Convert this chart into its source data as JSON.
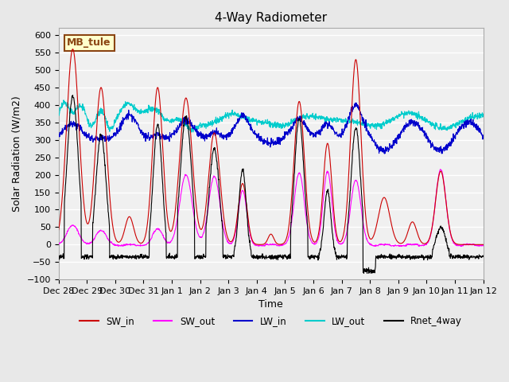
{
  "title": "4-Way Radiometer",
  "xlabel": "Time",
  "ylabel": "Solar Radiation (W/m2)",
  "ylim": [
    -100,
    620
  ],
  "yticks": [
    -100,
    -50,
    0,
    50,
    100,
    150,
    200,
    250,
    300,
    350,
    400,
    450,
    500,
    550,
    600
  ],
  "annotation_text": "MB_tule",
  "annotation_color": "#8B4513",
  "annotation_bg": "#FFFFCC",
  "background_color": "#E8E8E8",
  "plot_bg": "#F0F0F0",
  "grid_color": "white",
  "colors": {
    "SW_in": "#CC0000",
    "SW_out": "#FF00FF",
    "LW_in": "#0000CC",
    "LW_out": "#00CCCC",
    "Rnet_4way": "#000000"
  },
  "x_tick_labels": [
    "Dec 28",
    "Dec 29",
    "Dec 30",
    "Dec 31",
    "Jan 1",
    "Jan 2",
    "Jan 3",
    "Jan 4",
    "Jan 5",
    "Jan 6",
    "Jan 7",
    "Jan 8",
    "Jan 9",
    "Jan 10",
    "Jan 11",
    "Jan 12"
  ],
  "num_points": 1680,
  "days": 15
}
